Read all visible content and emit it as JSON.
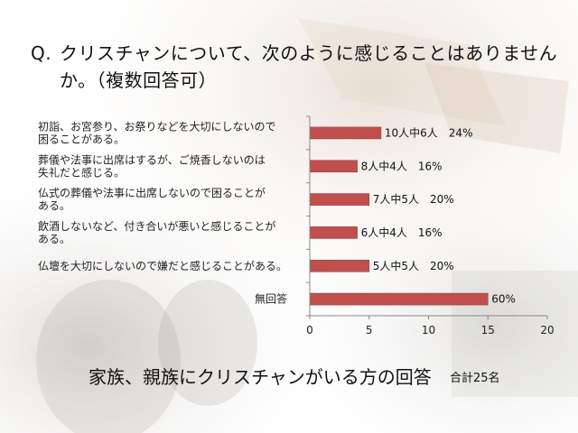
{
  "question": {
    "marker": "Q.",
    "text": "クリスチャンについて、次のように感じることはありませんか。（複数回答可）"
  },
  "caption": "家族、親族にクリスチャンがいる方の回答",
  "total": "合計25名",
  "colors": {
    "bar": "#c0504d",
    "bar_edge": "#9b3b39",
    "axis": "#888888"
  },
  "chart_data": {
    "type": "bar",
    "orientation": "horizontal",
    "title": "",
    "xlabel": "",
    "ylabel": "",
    "xlim": [
      0,
      20
    ],
    "xticks": [
      0,
      5,
      10,
      15,
      20
    ],
    "grid": false,
    "categories": [
      [
        "初詣、お宮参り、お祭りなどを大切にしないので",
        "困ることがある。"
      ],
      [
        "葬儀や法事に出席はするが、ご焼香しないのは",
        "失礼だと感じる。"
      ],
      [
        "仏式の葬儀や法事に出席しないので困ることが",
        "ある。"
      ],
      [
        "飲酒しないなど、付き合いが悪いと感じることが",
        "ある。"
      ],
      [
        "仏壇を大切にしないので嫌だと感じることがある。"
      ],
      [
        "無回答"
      ]
    ],
    "values": [
      6,
      4,
      5,
      4,
      5,
      15
    ],
    "data_labels": [
      "10人中6人　24%",
      "8人中4人　16%",
      "7人中5人　20%",
      "6人中4人　16%",
      "5人中5人　20%",
      "60%"
    ]
  }
}
